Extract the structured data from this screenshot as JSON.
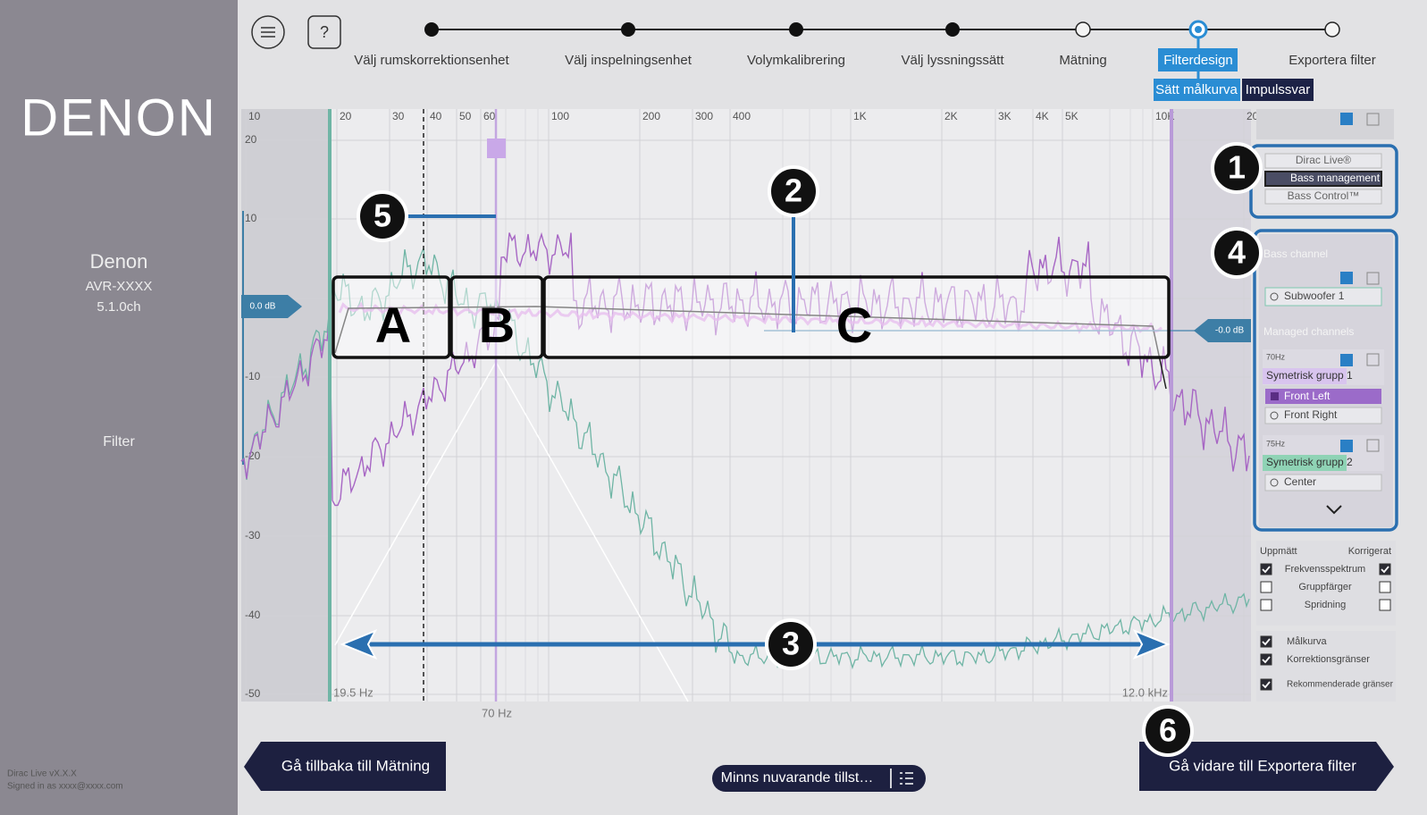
{
  "sidebar": {
    "logo": "DENON",
    "device_name": "Denon",
    "model": "AVR-XXXX",
    "channels": "5.1.0ch",
    "section": "Filter",
    "version": "Dirac Live vX.X.X",
    "signed_in": "Signed in as xxxx@xxxx.com"
  },
  "toolbar": {
    "help": "?"
  },
  "steps": [
    "Välj rumskorrektionsenhet",
    "Välj inspelningsenhet",
    "Volymkalibrering",
    "Välj lyssningssätt",
    "Mätning",
    "Filterdesign",
    "Exportera filter"
  ],
  "tabs": [
    "Sätt målkurva",
    "Impulssvar"
  ],
  "plot": {
    "x_ticks": [
      "10",
      "20",
      "30",
      "40",
      "50",
      "60",
      "100",
      "200",
      "300",
      "400",
      "1K",
      "2K",
      "3K",
      "4K",
      "5K",
      "10K",
      "20"
    ],
    "y_ticks": [
      "20",
      "10",
      "-10",
      "-20",
      "-30",
      "-40",
      "-50"
    ],
    "left_level": "0.0 dB",
    "right_level": "-0.0 dB",
    "low_limit": "19.5 Hz",
    "high_limit": "12.0 kHz",
    "crossover": "70 Hz"
  },
  "callouts": {
    "numbers": [
      "1",
      "2",
      "3",
      "4",
      "5",
      "6"
    ],
    "regions": [
      "A",
      "B",
      "C"
    ]
  },
  "modes": [
    "Dirac Live®",
    "Bass management",
    "Bass Control™"
  ],
  "channels": {
    "bass_header": "Bass channel",
    "subwoofer": "Subwoofer 1",
    "managed_header": "Managed channels",
    "groups": [
      {
        "crossover": "70Hz",
        "name": "Symetrisk grupp 1",
        "members": [
          "Front Left",
          "Front Right"
        ]
      },
      {
        "crossover": "75Hz",
        "name": "Symetrisk grupp 2",
        "members": [
          "Center"
        ]
      }
    ]
  },
  "display": {
    "measured": "Uppmätt",
    "corrected": "Korrigerat",
    "rows": [
      "Frekvensspektrum",
      "Gruppfärger",
      "Spridning"
    ],
    "overlays": [
      "Målkurva",
      "Korrektionsgränser",
      "Rekommenderade gränser"
    ]
  },
  "buttons": {
    "back": "Gå tillbaka till Mätning",
    "remember": "Minns nuvarande tillst…",
    "next": "Gå vidare till Exportera filter"
  }
}
